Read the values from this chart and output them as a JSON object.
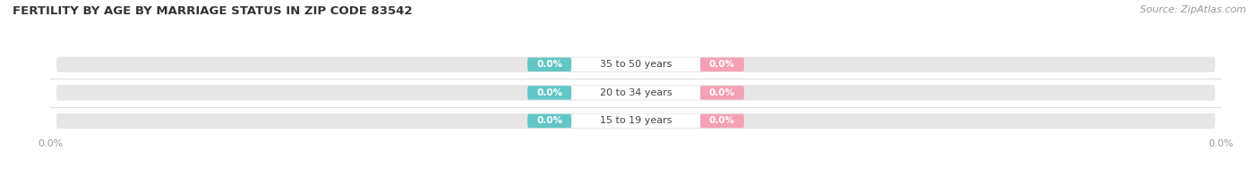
{
  "title": "FERTILITY BY AGE BY MARRIAGE STATUS IN ZIP CODE 83542",
  "source": "Source: ZipAtlas.com",
  "categories": [
    "15 to 19 years",
    "20 to 34 years",
    "35 to 50 years"
  ],
  "married_values": [
    0.0,
    0.0,
    0.0
  ],
  "unmarried_values": [
    0.0,
    0.0,
    0.0
  ],
  "married_color": "#62C6C6",
  "unmarried_color": "#F4A0B5",
  "bar_bg_color": "#E6E6E6",
  "title_fontsize": 9.5,
  "source_fontsize": 8,
  "value_fontsize": 7.5,
  "category_fontsize": 8,
  "legend_fontsize": 8.5,
  "tick_fontsize": 8,
  "axis_label_color": "#999999",
  "category_label_color": "#444444",
  "value_label_color": "#ffffff",
  "title_color": "#333333"
}
